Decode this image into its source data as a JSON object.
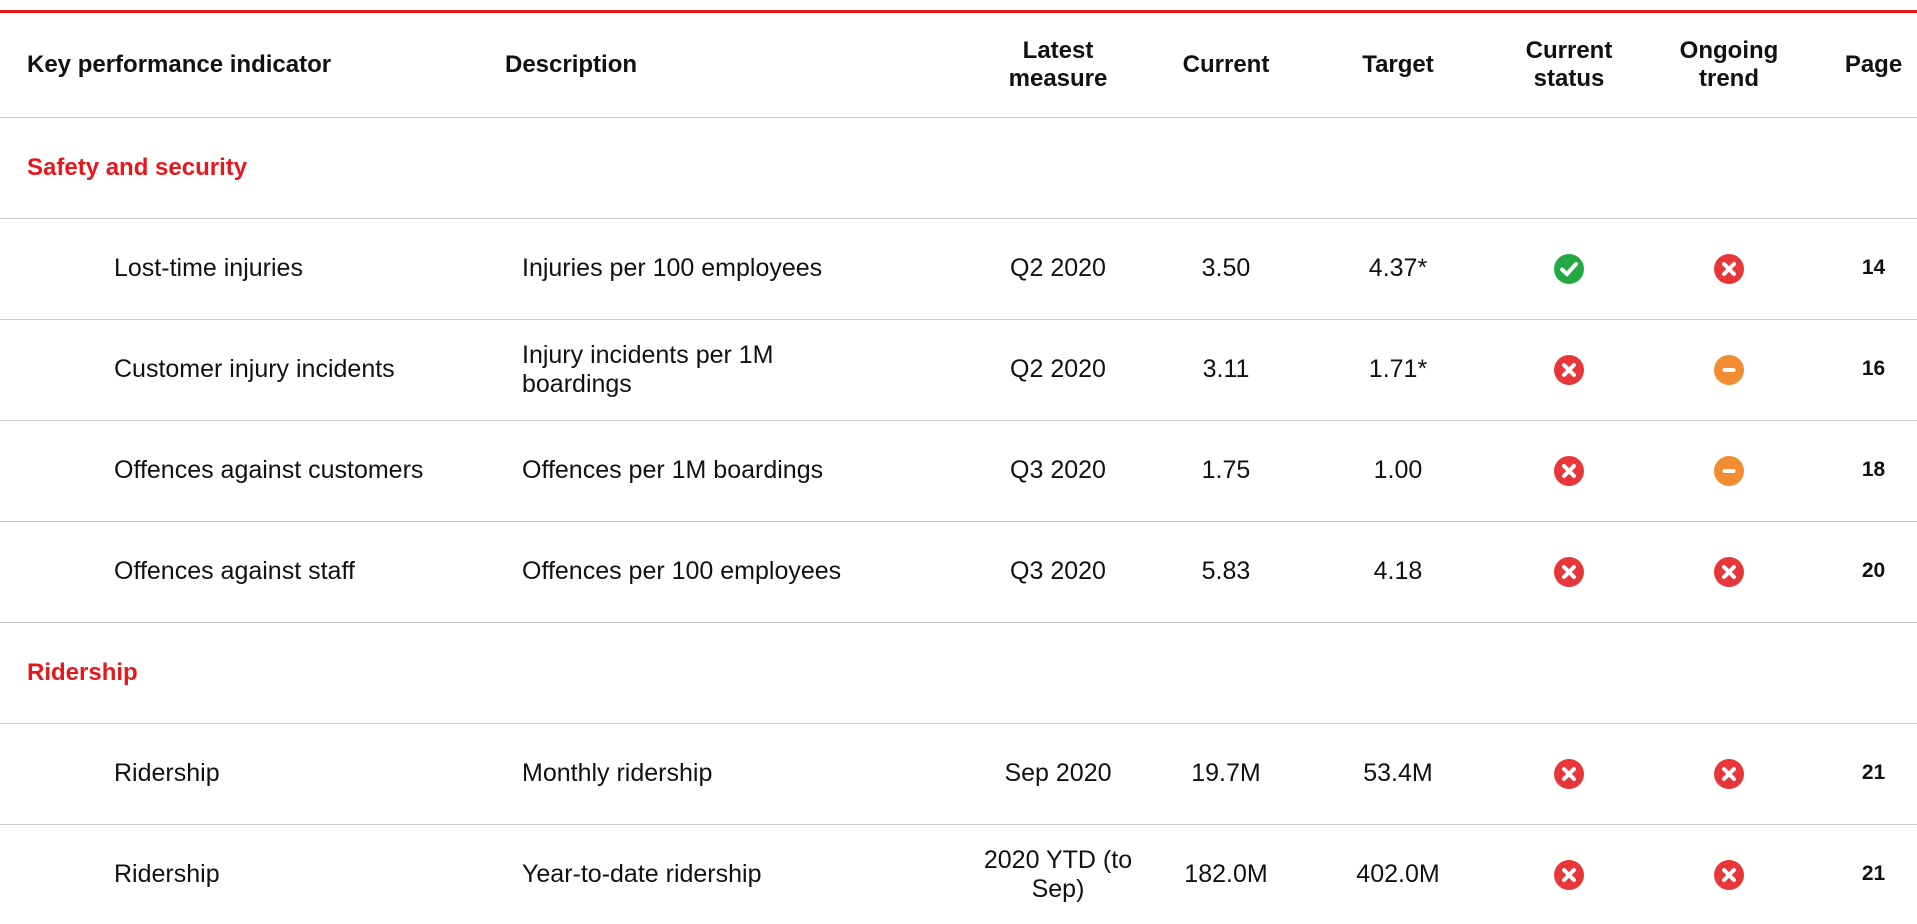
{
  "header": {
    "columns": [
      "Key performance indicator",
      "Description",
      "Latest measure",
      "Current",
      "Target",
      "Current status",
      "Ongoing trend",
      "Page"
    ]
  },
  "sections": [
    {
      "title": "Safety and security",
      "rows": [
        {
          "kpi": "Lost-time injuries",
          "description": "Injuries per 100 employees",
          "latest_measure": "Q2 2020",
          "current": "3.50",
          "target": "4.37*",
          "current_status": "check",
          "ongoing_trend": "cross",
          "page": 14
        },
        {
          "kpi": "Customer injury incidents",
          "description": "Injury incidents per 1M boardings",
          "latest_measure": "Q2 2020",
          "current": "3.11",
          "target": "1.71*",
          "current_status": "cross",
          "ongoing_trend": "dash",
          "page": 16
        },
        {
          "kpi": "Offences against customers",
          "description": "Offences per 1M boardings",
          "latest_measure": "Q3 2020",
          "current": "1.75",
          "target": "1.00",
          "current_status": "cross",
          "ongoing_trend": "dash",
          "page": 18
        },
        {
          "kpi": "Offences against staff",
          "description": "Offences per 100 employees",
          "latest_measure": "Q3 2020",
          "current": "5.83",
          "target": "4.18",
          "current_status": "cross",
          "ongoing_trend": "cross",
          "page": 20
        }
      ]
    },
    {
      "title": "Ridership",
      "rows": [
        {
          "kpi": "Ridership",
          "description": "Monthly ridership",
          "latest_measure": "Sep 2020",
          "current": "19.7M",
          "target": "53.4M",
          "current_status": "cross",
          "ongoing_trend": "cross",
          "page": 21
        },
        {
          "kpi": "Ridership",
          "description": "Year-to-date ridership",
          "latest_measure": "2020 YTD (to Sep)",
          "current": "182.0M",
          "target": "402.0M",
          "current_status": "cross",
          "ongoing_trend": "cross",
          "page": 21
        }
      ]
    }
  ]
}
